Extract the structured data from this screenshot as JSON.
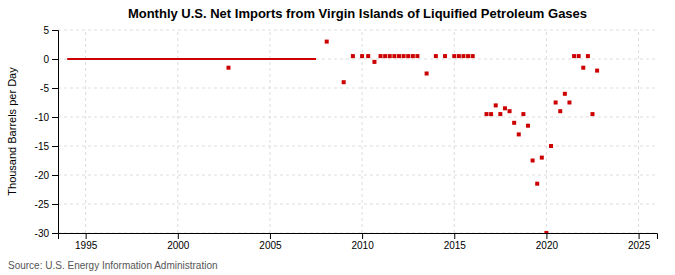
{
  "chart_data": {
    "type": "scatter",
    "title": "Monthly U.S. Net Imports from Virgin Islands of Liquified Petroleum Gases",
    "y_label": "Thousand Barrels per Day",
    "annotations": [
      "Source: U.S. Energy Information Administration"
    ],
    "xlim": [
      1993.5,
      2026
    ],
    "ylim": [
      -30,
      5
    ],
    "xticks": [
      1995,
      2000,
      2005,
      2010,
      2015,
      2020,
      2025
    ],
    "yticks": [
      5,
      0,
      -5,
      -10,
      -15,
      -20,
      -25,
      -30
    ],
    "grid": true,
    "series": [
      {
        "type": "line",
        "color": "#cc0000",
        "line_style": "solid",
        "x": [
          1994.0,
          2007.5
        ],
        "values": [
          0,
          0
        ]
      },
      {
        "type": "scatter",
        "color": "#cc0000",
        "marker": "square",
        "x": [
          2002.75,
          2008.08,
          2009.0,
          2009.5,
          2010.0,
          2010.33,
          2010.67,
          2011.0,
          2011.25,
          2011.5,
          2011.75,
          2012.0,
          2012.25,
          2012.5,
          2012.75,
          2013.0,
          2013.5,
          2014.0,
          2014.5,
          2015.0,
          2015.25,
          2015.5,
          2015.75,
          2016.0,
          2016.75,
          2017.0,
          2017.25,
          2017.5,
          2017.75,
          2018.0,
          2018.25,
          2018.5,
          2018.75,
          2019.0,
          2019.25,
          2019.5,
          2019.75,
          2020.0,
          2020.25,
          2020.5,
          2020.75,
          2021.0,
          2021.25,
          2021.5,
          2021.75,
          2022.0,
          2022.25,
          2022.5,
          2022.75
        ],
        "values": [
          -1.5,
          3.0,
          -4.0,
          0.5,
          0.5,
          0.5,
          -0.5,
          0.5,
          0.5,
          0.5,
          0.5,
          0.5,
          0.5,
          0.5,
          0.5,
          0.5,
          -2.5,
          0.5,
          0.5,
          0.5,
          0.5,
          0.5,
          0.5,
          0.5,
          -9.5,
          -9.5,
          -8.0,
          -9.5,
          -8.5,
          -9.0,
          -11.0,
          -13.0,
          -9.5,
          -11.5,
          -17.5,
          -21.5,
          -17.0,
          -30.0,
          -15.0,
          -7.5,
          -9.0,
          -6.0,
          -7.5,
          0.5,
          0.5,
          -1.5,
          0.5,
          -9.5,
          -2.0
        ]
      }
    ]
  }
}
